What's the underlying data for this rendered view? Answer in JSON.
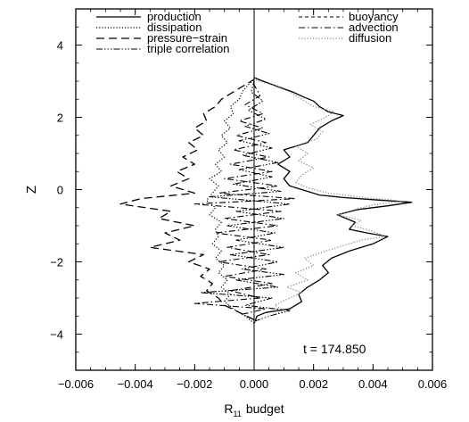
{
  "chart_data": {
    "type": "line",
    "title": "",
    "xlabel": "R",
    "xlabel_subscript": "11",
    "xlabel_suffix": "budget",
    "ylabel": "Z",
    "xlim": [
      -0.006,
      0.006
    ],
    "ylim": [
      -5,
      5
    ],
    "x_ticks": [
      -0.006,
      -0.004,
      -0.002,
      0.0,
      0.002,
      0.004,
      0.006
    ],
    "x_tick_labels": [
      "−0.006",
      "−0.004",
      "−0.002",
      "0.000",
      "0.002",
      "0.004",
      "0.006"
    ],
    "y_ticks": [
      -4,
      -2,
      0,
      2,
      4
    ],
    "y_tick_labels": [
      "−4",
      "−2",
      "0",
      "2",
      "4"
    ],
    "grid": false,
    "legend_placement": "top",
    "annotation": "t = 174.850",
    "series": [
      {
        "name": "production",
        "dash": "solid",
        "color": "#000000",
        "width": 1.3,
        "points": [
          [
            0.0,
            -3.7
          ],
          [
            0.0001,
            -3.5
          ],
          [
            0.0004,
            -3.4
          ],
          [
            0.0012,
            -3.3
          ],
          [
            0.0016,
            -3.1
          ],
          [
            0.0015,
            -2.9
          ],
          [
            0.0018,
            -2.7
          ],
          [
            0.0022,
            -2.5
          ],
          [
            0.0025,
            -2.3
          ],
          [
            0.0023,
            -2.1
          ],
          [
            0.0026,
            -1.9
          ],
          [
            0.0032,
            -1.7
          ],
          [
            0.004,
            -1.5
          ],
          [
            0.0045,
            -1.3
          ],
          [
            0.0038,
            -1.2
          ],
          [
            0.0032,
            -1.1
          ],
          [
            0.0034,
            -0.9
          ],
          [
            0.0028,
            -0.7
          ],
          [
            0.0035,
            -0.55
          ],
          [
            0.0045,
            -0.45
          ],
          [
            0.0053,
            -0.35
          ],
          [
            0.004,
            -0.28
          ],
          [
            0.003,
            -0.22
          ],
          [
            0.0022,
            -0.15
          ],
          [
            0.0018,
            -0.05
          ],
          [
            0.0012,
            0.1
          ],
          [
            0.001,
            0.3
          ],
          [
            0.0012,
            0.5
          ],
          [
            0.0008,
            0.7
          ],
          [
            0.0012,
            0.9
          ],
          [
            0.001,
            1.1
          ],
          [
            0.0018,
            1.3
          ],
          [
            0.002,
            1.5
          ],
          [
            0.0022,
            1.7
          ],
          [
            0.0026,
            1.9
          ],
          [
            0.003,
            2.05
          ],
          [
            0.0025,
            2.15
          ],
          [
            0.0022,
            2.3
          ],
          [
            0.002,
            2.45
          ],
          [
            0.0017,
            2.55
          ],
          [
            0.0013,
            2.7
          ],
          [
            0.0008,
            2.85
          ],
          [
            0.0003,
            3.0
          ],
          [
            0.0,
            3.1
          ]
        ]
      },
      {
        "name": "dissipation",
        "dash": "1.2 2",
        "color": "#000000",
        "width": 1.2,
        "points": [
          [
            0.0,
            -3.7
          ],
          [
            -0.0003,
            -3.5
          ],
          [
            -0.0007,
            -3.3
          ],
          [
            -0.001,
            -3.1
          ],
          [
            -0.0008,
            -2.9
          ],
          [
            -0.0011,
            -2.7
          ],
          [
            -0.0009,
            -2.5
          ],
          [
            -0.0012,
            -2.3
          ],
          [
            -0.001,
            -2.1
          ],
          [
            -0.0013,
            -1.9
          ],
          [
            -0.0011,
            -1.7
          ],
          [
            -0.0014,
            -1.5
          ],
          [
            -0.0012,
            -1.3
          ],
          [
            -0.0013,
            -1.1
          ],
          [
            -0.0011,
            -0.9
          ],
          [
            -0.0015,
            -0.7
          ],
          [
            -0.0013,
            -0.5
          ],
          [
            -0.0016,
            -0.3
          ],
          [
            -0.0014,
            -0.1
          ],
          [
            -0.0012,
            0.1
          ],
          [
            -0.0015,
            0.3
          ],
          [
            -0.0011,
            0.5
          ],
          [
            -0.0013,
            0.7
          ],
          [
            -0.001,
            0.9
          ],
          [
            -0.0012,
            1.1
          ],
          [
            -0.0009,
            1.3
          ],
          [
            -0.0011,
            1.5
          ],
          [
            -0.0008,
            1.7
          ],
          [
            -0.001,
            1.9
          ],
          [
            -0.0007,
            2.1
          ],
          [
            -0.0008,
            2.3
          ],
          [
            -0.0005,
            2.5
          ],
          [
            -0.0004,
            2.7
          ],
          [
            -0.0002,
            2.9
          ],
          [
            0.0,
            3.05
          ]
        ]
      },
      {
        "name": "pressure−strain",
        "dash": "9 5",
        "color": "#000000",
        "width": 1.3,
        "points": [
          [
            0.0,
            -3.6
          ],
          [
            -0.0005,
            -3.4
          ],
          [
            -0.001,
            -3.2
          ],
          [
            -0.0012,
            -3.0
          ],
          [
            -0.0016,
            -2.8
          ],
          [
            -0.0014,
            -2.6
          ],
          [
            -0.0018,
            -2.4
          ],
          [
            -0.0015,
            -2.2
          ],
          [
            -0.0022,
            -2.0
          ],
          [
            -0.0017,
            -1.8
          ],
          [
            -0.0035,
            -1.6
          ],
          [
            -0.0025,
            -1.4
          ],
          [
            -0.003,
            -1.2
          ],
          [
            -0.002,
            -1.0
          ],
          [
            -0.0032,
            -0.8
          ],
          [
            -0.0028,
            -0.6
          ],
          [
            -0.0045,
            -0.4
          ],
          [
            -0.0038,
            -0.25
          ],
          [
            -0.002,
            -0.1
          ],
          [
            -0.0028,
            0.1
          ],
          [
            -0.0022,
            0.3
          ],
          [
            -0.0026,
            0.5
          ],
          [
            -0.002,
            0.7
          ],
          [
            -0.0024,
            0.9
          ],
          [
            -0.0019,
            1.1
          ],
          [
            -0.0022,
            1.3
          ],
          [
            -0.0017,
            1.5
          ],
          [
            -0.002,
            1.7
          ],
          [
            -0.0016,
            1.9
          ],
          [
            -0.0017,
            2.1
          ],
          [
            -0.0013,
            2.3
          ],
          [
            -0.0011,
            2.5
          ],
          [
            -0.0007,
            2.7
          ],
          [
            -0.0003,
            2.9
          ],
          [
            0.0,
            3.05
          ]
        ]
      },
      {
        "name": "triple correlation",
        "dash": "7 2 1.5 2 1.5 2 1.5 2",
        "color": "#000000",
        "width": 1.1,
        "points": [
          [
            0.0,
            -3.65
          ],
          [
            0.0005,
            -3.5
          ],
          [
            0.0012,
            -3.35
          ],
          [
            -0.0003,
            -3.2
          ],
          [
            0.0006,
            -3.0
          ],
          [
            -0.0018,
            -2.85
          ],
          [
            0.0008,
            -2.7
          ],
          [
            -0.0006,
            -2.5
          ],
          [
            0.001,
            -2.35
          ],
          [
            -0.0004,
            -2.2
          ],
          [
            0.0008,
            -2.0
          ],
          [
            -0.0008,
            -1.8
          ],
          [
            0.001,
            -1.6
          ],
          [
            -0.0006,
            -1.4
          ],
          [
            0.0007,
            -1.2
          ],
          [
            -0.0009,
            -1.0
          ],
          [
            0.001,
            -0.8
          ],
          [
            -0.0006,
            -0.6
          ],
          [
            0.0012,
            -0.4
          ],
          [
            -0.0015,
            -0.2
          ],
          [
            0.0009,
            -0.05
          ],
          [
            -0.0007,
            0.15
          ],
          [
            0.0006,
            0.35
          ],
          [
            -0.0005,
            0.55
          ],
          [
            0.0008,
            0.75
          ],
          [
            -0.0004,
            0.95
          ],
          [
            0.0006,
            1.15
          ],
          [
            -0.0005,
            1.35
          ],
          [
            0.0005,
            1.55
          ],
          [
            -0.0003,
            1.75
          ],
          [
            0.0004,
            1.95
          ],
          [
            -0.0002,
            2.2
          ],
          [
            0.0003,
            2.45
          ],
          [
            -0.0001,
            2.7
          ],
          [
            0.0,
            3.0
          ]
        ]
      },
      {
        "name": "buoyancy",
        "dash": "4 3",
        "color": "#000000",
        "width": 1.1,
        "points": [
          [
            0.0,
            -3.7
          ],
          [
            0.0,
            3.1
          ]
        ]
      },
      {
        "name": "advection",
        "dash": "7 3 1.5 3",
        "color": "#000000",
        "width": 1.1,
        "points": [
          [
            0.0,
            -3.6
          ],
          [
            -0.0004,
            -3.45
          ],
          [
            0.0004,
            -3.3
          ],
          [
            -0.002,
            -3.15
          ],
          [
            0.0002,
            -3.0
          ],
          [
            -0.0008,
            -2.8
          ],
          [
            0.0006,
            -2.6
          ],
          [
            -0.001,
            -2.4
          ],
          [
            0.0004,
            -2.2
          ],
          [
            -0.0012,
            -2.0
          ],
          [
            0.0005,
            -1.8
          ],
          [
            -0.0009,
            -1.6
          ],
          [
            0.0006,
            -1.4
          ],
          [
            -0.0013,
            -1.2
          ],
          [
            0.0008,
            -1.0
          ],
          [
            -0.001,
            -0.8
          ],
          [
            0.0009,
            -0.6
          ],
          [
            -0.002,
            -0.4
          ],
          [
            0.0014,
            -0.25
          ],
          [
            -0.0012,
            -0.1
          ],
          [
            0.0008,
            0.1
          ],
          [
            -0.001,
            0.3
          ],
          [
            0.0006,
            0.5
          ],
          [
            -0.0008,
            0.7
          ],
          [
            0.0005,
            0.9
          ],
          [
            -0.0007,
            1.1
          ],
          [
            0.0004,
            1.3
          ],
          [
            -0.0006,
            1.5
          ],
          [
            0.0003,
            1.7
          ],
          [
            -0.0005,
            1.9
          ],
          [
            0.0003,
            2.1
          ],
          [
            -0.0003,
            2.35
          ],
          [
            0.0002,
            2.6
          ],
          [
            0.0,
            2.9
          ]
        ]
      },
      {
        "name": "diffusion",
        "dash": "1.2 2",
        "color": "#8a8a8a",
        "width": 1.3,
        "points": [
          [
            0.0,
            -3.65
          ],
          [
            0.0005,
            -3.5
          ],
          [
            0.001,
            -3.35
          ],
          [
            0.0007,
            -3.2
          ],
          [
            0.0012,
            -3.0
          ],
          [
            0.0016,
            -2.85
          ],
          [
            0.0011,
            -2.7
          ],
          [
            0.0018,
            -2.5
          ],
          [
            0.0014,
            -2.3
          ],
          [
            0.002,
            -2.1
          ],
          [
            0.0017,
            -1.9
          ],
          [
            0.0024,
            -1.7
          ],
          [
            0.003,
            -1.55
          ],
          [
            0.0036,
            -1.4
          ],
          [
            0.0044,
            -1.3
          ],
          [
            0.004,
            -1.15
          ],
          [
            0.0033,
            -1.0
          ],
          [
            0.0036,
            -0.85
          ],
          [
            0.0028,
            -0.7
          ],
          [
            0.0034,
            -0.55
          ],
          [
            0.004,
            -0.42
          ],
          [
            0.005,
            -0.32
          ],
          [
            0.0037,
            -0.22
          ],
          [
            0.0025,
            -0.1
          ],
          [
            0.0018,
            0.05
          ],
          [
            0.0014,
            0.2
          ],
          [
            0.0016,
            0.4
          ],
          [
            0.002,
            0.6
          ],
          [
            0.0015,
            0.8
          ],
          [
            0.0018,
            1.0
          ],
          [
            0.0014,
            1.2
          ],
          [
            0.0021,
            1.4
          ],
          [
            0.0023,
            1.6
          ],
          [
            0.0019,
            1.8
          ],
          [
            0.0024,
            2.0
          ],
          [
            0.0027,
            2.15
          ],
          [
            0.002,
            2.3
          ],
          [
            0.0016,
            2.5
          ],
          [
            0.0012,
            2.7
          ],
          [
            0.0006,
            2.9
          ],
          [
            0.0,
            3.05
          ]
        ]
      }
    ]
  }
}
